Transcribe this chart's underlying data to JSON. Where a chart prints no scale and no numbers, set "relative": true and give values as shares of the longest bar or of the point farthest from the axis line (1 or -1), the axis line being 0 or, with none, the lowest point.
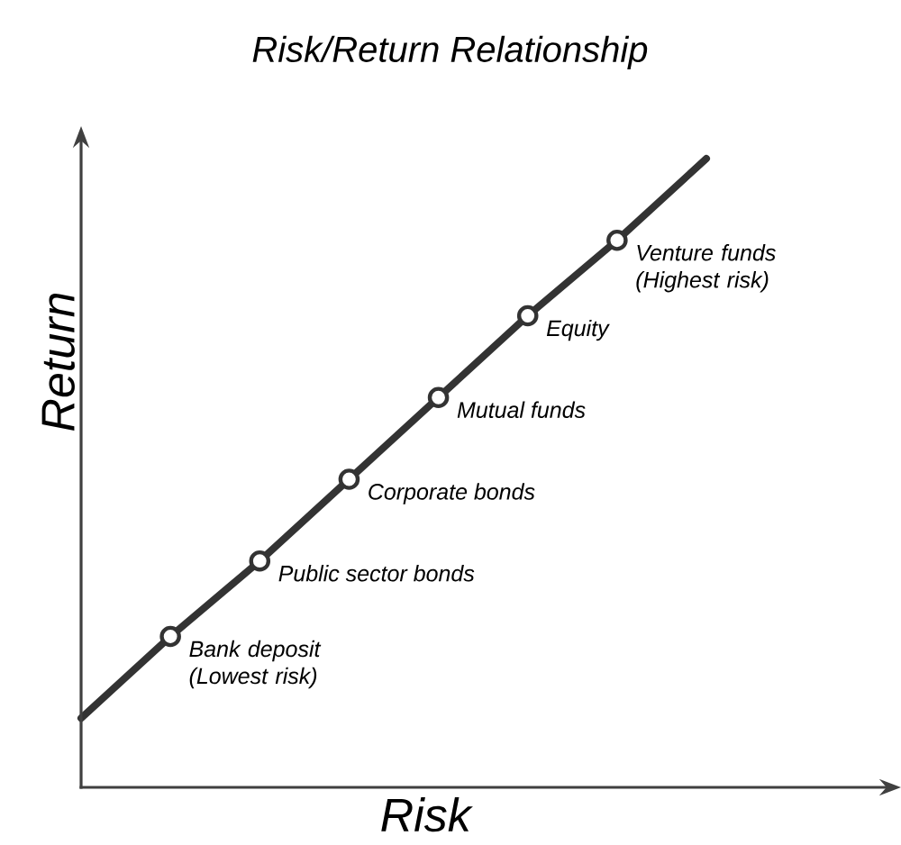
{
  "chart_data": {
    "type": "line",
    "title": "Risk/Return Relationship",
    "xlabel": "Risk",
    "ylabel": "Return",
    "relative": true,
    "categories": [
      null,
      null,
      null,
      null,
      null,
      null,
      null,
      null
    ],
    "series": [
      {
        "color": "#333333",
        "values": [
          0.11,
          0.24,
          0.36,
          0.49,
          0.62,
          0.75,
          0.87,
          1.0
        ],
        "marker": "circle"
      }
    ],
    "annotations": [
      "Bank deposit (Lowest risk)",
      "Public sector bonds",
      "Corporate bonds",
      "Mutual funds",
      "Equity",
      "Venture funds (Highest risk)"
    ]
  }
}
